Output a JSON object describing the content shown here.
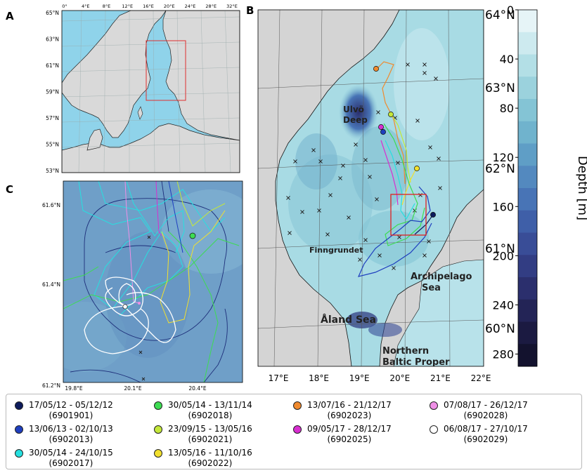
{
  "panels": {
    "a": {
      "letter": "A",
      "lat_ticks": [
        "65°N",
        "63°N",
        "61°N",
        "59°N",
        "57°N",
        "55°N",
        "53°N"
      ],
      "lon_ticks": [
        "0°",
        "4°E",
        "8°E",
        "12°E",
        "16°E",
        "20°E",
        "24°E",
        "28°E",
        "32°E"
      ]
    },
    "b": {
      "letter": "B",
      "lat_ticks": [
        "64°N",
        "63°N",
        "62°N",
        "61°N",
        "60°N"
      ],
      "lon_ticks": [
        "17°E",
        "18°E",
        "19°E",
        "20°E",
        "21°E",
        "22°E"
      ],
      "labels": {
        "ulvo": [
          "Ulvö",
          "Deep"
        ],
        "finngrundet": "Finngrundet",
        "archipelago": [
          "Archipelago",
          "Sea"
        ],
        "aland": "Åland Sea",
        "nbp": [
          "Northern",
          "Baltic Proper"
        ]
      }
    },
    "c": {
      "letter": "C",
      "lat_ticks": [
        "61.6°N",
        "61.4°N",
        "61.2°N"
      ],
      "lon_ticks": [
        "19.8°E",
        "20.1°E",
        "20.4°E"
      ]
    }
  },
  "colorbar": {
    "label": "Depth [m]",
    "ticks": [
      "0",
      "40",
      "80",
      "120",
      "160",
      "200",
      "240",
      "280"
    ],
    "colors": [
      "#e6f4f7",
      "#cdeaef",
      "#b3dfe6",
      "#9bd2dd",
      "#84c4d5",
      "#70b3cd",
      "#5f9ec6",
      "#5389bf",
      "#4874b6",
      "#3f5fa8",
      "#394d97",
      "#323d83",
      "#2b2f6d",
      "#232456",
      "#1b1a41",
      "#13122e"
    ]
  },
  "legend": {
    "entries": [
      {
        "dates": "17/05/12 - 05/12/12",
        "id": "(6901901)",
        "color": "#0d1b5c"
      },
      {
        "dates": "13/06/13 - 02/10/13",
        "id": "(6902013)",
        "color": "#1f3fbf"
      },
      {
        "dates": "30/05/14 - 24/10/15",
        "id": "(6902017)",
        "color": "#26e0e0"
      },
      {
        "dates": "30/05/14 - 13/11/14",
        "id": "(6902018)",
        "color": "#3ddc52"
      },
      {
        "dates": "23/09/15 - 13/05/16",
        "id": "(6902021)",
        "color": "#c4e83a"
      },
      {
        "dates": "13/05/16 - 11/10/16",
        "id": "(6902022)",
        "color": "#f2e02e"
      },
      {
        "dates": "13/07/16 - 21/12/17",
        "id": "(6902023)",
        "color": "#f08a2e"
      },
      {
        "dates": "09/05/17 - 28/12/17",
        "id": "(6902025)",
        "color": "#d82ed0"
      },
      {
        "dates": "07/08/17 - 26/12/17",
        "id": "(6902028)",
        "color": "#ef8fe6"
      },
      {
        "dates": "06/08/17 - 27/10/17",
        "id": "(6902029)",
        "color": "#ffffff"
      }
    ]
  }
}
